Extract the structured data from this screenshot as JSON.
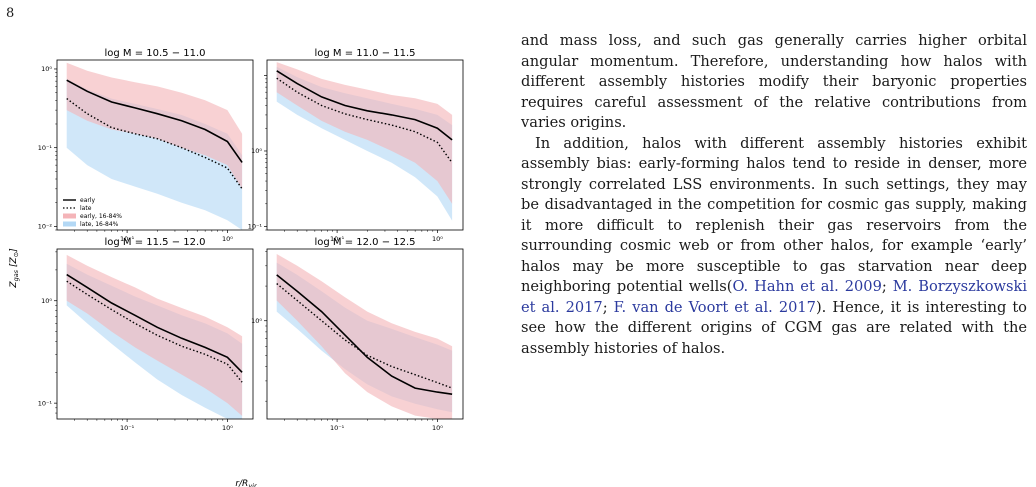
{
  "page_number": "8",
  "figure": {
    "ylabel": "Z_gas [Z_⊙]",
    "xlabel": "r/R_vir",
    "legend": [
      "early",
      "late",
      "early, 16-84%",
      "late, 16-84%"
    ],
    "colors": {
      "early_band": "#f4b4b8",
      "late_band": "#b3d8f5",
      "early_line": "#000000",
      "late_line": "#000000"
    }
  },
  "chart_data": [
    {
      "type": "line",
      "title": "log M = 10.5 − 11.0",
      "xscale": "log",
      "yscale": "log",
      "xlim": [
        0.02,
        1.8
      ],
      "ylim": [
        0.009,
        1.3
      ],
      "yticks": [
        "10⁻²",
        "10⁻¹",
        "10⁰"
      ],
      "xticks": [
        "10⁻¹",
        "10⁰"
      ],
      "x": [
        0.025,
        0.04,
        0.07,
        0.12,
        0.2,
        0.35,
        0.6,
        1.0,
        1.4
      ],
      "series": [
        {
          "name": "early",
          "values": [
            0.72,
            0.52,
            0.38,
            0.32,
            0.27,
            0.22,
            0.17,
            0.12,
            0.065
          ]
        },
        {
          "name": "late",
          "values": [
            0.42,
            0.27,
            0.18,
            0.15,
            0.13,
            0.1,
            0.075,
            0.055,
            0.03
          ]
        },
        {
          "name": "early, 16-84%",
          "low": [
            0.3,
            0.22,
            0.17,
            0.15,
            0.13,
            0.1,
            0.08,
            0.06,
            0.03
          ],
          "high": [
            1.2,
            0.95,
            0.78,
            0.68,
            0.6,
            0.5,
            0.4,
            0.3,
            0.15
          ]
        },
        {
          "name": "late, 16-84%",
          "low": [
            0.1,
            0.06,
            0.04,
            0.032,
            0.026,
            0.02,
            0.016,
            0.012,
            0.009
          ],
          "high": [
            0.75,
            0.55,
            0.42,
            0.36,
            0.31,
            0.26,
            0.2,
            0.15,
            0.08
          ]
        }
      ]
    },
    {
      "type": "line",
      "title": "log M = 11.0 − 11.5",
      "xscale": "log",
      "yscale": "log",
      "xlim": [
        0.02,
        1.8
      ],
      "ylim": [
        0.009,
        1.6
      ],
      "yticks": [
        "10⁻¹",
        "10⁰"
      ],
      "xticks": [
        "10⁻¹",
        "10⁰"
      ],
      "x": [
        0.025,
        0.04,
        0.07,
        0.12,
        0.2,
        0.35,
        0.6,
        1.0,
        1.4
      ],
      "series": [
        {
          "name": "early",
          "values": [
            1.15,
            0.78,
            0.52,
            0.4,
            0.34,
            0.3,
            0.26,
            0.2,
            0.14
          ]
        },
        {
          "name": "late",
          "values": [
            0.92,
            0.6,
            0.4,
            0.31,
            0.26,
            0.22,
            0.18,
            0.13,
            0.07
          ]
        },
        {
          "name": "early, 16-84%",
          "low": [
            0.6,
            0.4,
            0.25,
            0.18,
            0.14,
            0.1,
            0.07,
            0.04,
            0.02
          ],
          "high": [
            1.5,
            1.2,
            0.9,
            0.75,
            0.65,
            0.55,
            0.5,
            0.42,
            0.3
          ]
        },
        {
          "name": "late, 16-84%",
          "low": [
            0.45,
            0.3,
            0.2,
            0.14,
            0.1,
            0.07,
            0.045,
            0.025,
            0.012
          ],
          "high": [
            1.3,
            0.95,
            0.7,
            0.58,
            0.5,
            0.42,
            0.36,
            0.3,
            0.22
          ]
        }
      ]
    },
    {
      "type": "line",
      "title": "log M = 11.5 − 12.0",
      "xscale": "log",
      "yscale": "log",
      "xlim": [
        0.02,
        1.8
      ],
      "ylim": [
        0.07,
        3.2
      ],
      "yticks": [
        "10⁻¹",
        "10⁰"
      ],
      "xticks": [
        "10⁻¹",
        "10⁰"
      ],
      "x": [
        0.025,
        0.04,
        0.07,
        0.12,
        0.2,
        0.35,
        0.6,
        1.0,
        1.4
      ],
      "series": [
        {
          "name": "early",
          "values": [
            1.8,
            1.35,
            0.95,
            0.72,
            0.55,
            0.43,
            0.35,
            0.28,
            0.2
          ]
        },
        {
          "name": "late",
          "values": [
            1.55,
            1.15,
            0.82,
            0.6,
            0.46,
            0.36,
            0.3,
            0.24,
            0.16
          ]
        },
        {
          "name": "early, 16-84%",
          "low": [
            1.0,
            0.75,
            0.5,
            0.35,
            0.26,
            0.19,
            0.14,
            0.1,
            0.075
          ],
          "high": [
            2.8,
            2.2,
            1.7,
            1.35,
            1.05,
            0.85,
            0.7,
            0.55,
            0.45
          ]
        },
        {
          "name": "late, 16-84%",
          "low": [
            0.9,
            0.6,
            0.38,
            0.25,
            0.17,
            0.12,
            0.09,
            0.07,
            0.06
          ],
          "high": [
            2.3,
            1.8,
            1.4,
            1.1,
            0.9,
            0.72,
            0.6,
            0.48,
            0.38
          ]
        }
      ]
    },
    {
      "type": "line",
      "title": "log M = 12.0 − 12.5",
      "xscale": "log",
      "yscale": "log",
      "xlim": [
        0.02,
        1.8
      ],
      "ylim": [
        0.14,
        4.2
      ],
      "yticks": [
        "10⁰"
      ],
      "xticks": [
        "10⁻¹",
        "10⁰"
      ],
      "x": [
        0.025,
        0.04,
        0.07,
        0.12,
        0.2,
        0.35,
        0.6,
        1.0,
        1.4
      ],
      "series": [
        {
          "name": "early",
          "values": [
            2.5,
            1.8,
            1.2,
            0.75,
            0.48,
            0.33,
            0.26,
            0.24,
            0.23
          ]
        },
        {
          "name": "late",
          "values": [
            2.1,
            1.5,
            1.0,
            0.68,
            0.5,
            0.4,
            0.34,
            0.29,
            0.26
          ]
        },
        {
          "name": "early, 16-84%",
          "low": [
            1.5,
            1.0,
            0.6,
            0.35,
            0.24,
            0.18,
            0.15,
            0.14,
            0.14
          ],
          "high": [
            3.8,
            3.0,
            2.2,
            1.6,
            1.2,
            0.95,
            0.8,
            0.7,
            0.6
          ]
        },
        {
          "name": "late, 16-84%",
          "low": [
            1.2,
            0.85,
            0.55,
            0.38,
            0.28,
            0.22,
            0.19,
            0.17,
            0.16
          ],
          "high": [
            3.2,
            2.5,
            1.8,
            1.3,
            1.0,
            0.85,
            0.72,
            0.62,
            0.55
          ]
        }
      ]
    }
  ],
  "text": {
    "p1": "and mass loss, and such gas generally carries higher orbital angular momentum. Therefore, understanding how halos with different assembly histories modify their baryonic properties requires careful assessment of the relative contributions from varies origins.",
    "p2a": "In addition, halos with different assembly histories exhibit assembly bias: early-forming halos tend to reside in denser, more strongly correlated LSS environments. In such settings, they may be disadvantaged in the competition for cosmic gas supply, making it more difficult to replenish their gas reservoirs from the surrounding cosmic web or from other halos, for example ‘early’ halos may be more susceptible to gas starvation near deep neighboring potential wells(",
    "cite1": "O. Hahn et al. 2009",
    "sep1": "; ",
    "cite2": "M. Borzyszkowski et al. 2017",
    "sep2": "; ",
    "cite3": "F. van de Voort et al. 2017",
    "p2b": "). Hence, it is interesting to see how the different origins of CGM gas are related with the assembly histories of halos."
  }
}
